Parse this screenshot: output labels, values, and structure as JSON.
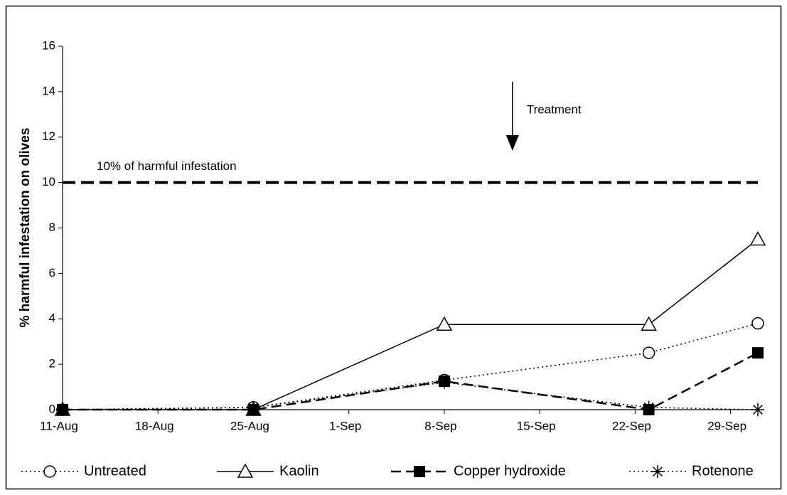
{
  "chart_data": {
    "type": "line",
    "y_label": "% harmful infestation on olives",
    "x": [
      "08-11",
      "08-25",
      "09-08",
      "09-23",
      "10-01"
    ],
    "xlim": [
      "08-11",
      "10-01"
    ],
    "xticks": [
      {
        "value": "08-11",
        "label": "11-Aug"
      },
      {
        "value": "08-18",
        "label": "18-Aug"
      },
      {
        "value": "08-25",
        "label": "25-Aug"
      },
      {
        "value": "09-01",
        "label": "1-Sep"
      },
      {
        "value": "09-08",
        "label": "8-Sep"
      },
      {
        "value": "09-15",
        "label": "15-Sep"
      },
      {
        "value": "09-22",
        "label": "22-Sep"
      },
      {
        "value": "09-29",
        "label": "29-Sep"
      }
    ],
    "ylim": [
      0,
      16
    ],
    "yticks": [
      0,
      2,
      4,
      6,
      8,
      10,
      12,
      14,
      16
    ],
    "series": [
      {
        "name": "Untreated",
        "color": "#000000",
        "dash": "dotted",
        "marker": "circle",
        "values": [
          0,
          0.1,
          1.3,
          2.5,
          3.8
        ]
      },
      {
        "name": "Kaolin",
        "color": "#000000",
        "dash": "solid",
        "marker": "triangle",
        "values": [
          0,
          0,
          3.75,
          3.75,
          7.5
        ]
      },
      {
        "name": "Copper hydroxide",
        "color": "#000000",
        "dash": "dashed",
        "marker": "square",
        "values": [
          0,
          0,
          1.25,
          0,
          2.5
        ]
      },
      {
        "name": "Rotenone",
        "color": "#000000",
        "dash": "dotted",
        "marker": "asterisk",
        "values": [
          0,
          0.1,
          1.2,
          0.1,
          0
        ]
      }
    ],
    "threshold": {
      "value": 10,
      "label": "10% of harmful infestation"
    },
    "annotation": {
      "text": "Treatment",
      "x": "09-13"
    }
  }
}
